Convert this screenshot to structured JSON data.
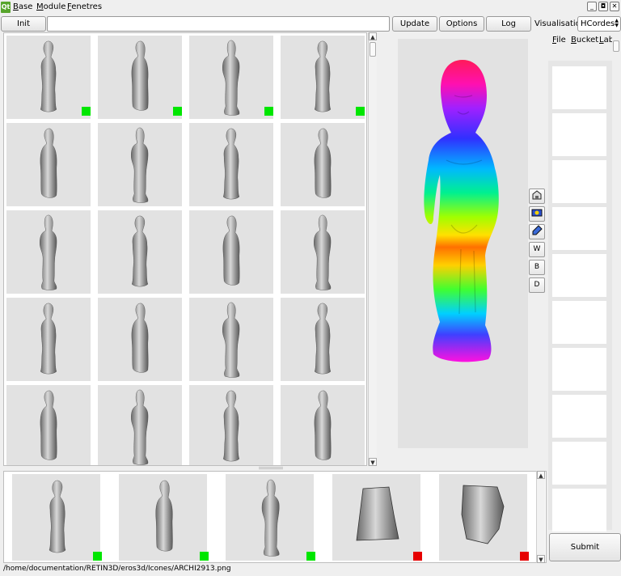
{
  "menubar": {
    "logo": "Qt",
    "items": [
      {
        "label": "Base",
        "accel": "B",
        "rest": "ase"
      },
      {
        "label": "Module",
        "accel": "M",
        "rest": "odule"
      },
      {
        "label": "Fenetres",
        "accel": "F",
        "rest": "enetres"
      }
    ],
    "window_buttons": [
      "_",
      "◘",
      "✕"
    ]
  },
  "toolbar": {
    "init_label": "Init",
    "path_value": "",
    "update_label": "Update",
    "options_label": "Options",
    "log_label": "Log",
    "visualisation_label": "Visualisation:",
    "visualisation_value": "HCordes"
  },
  "side_menu": [
    {
      "label": "File",
      "accel": "F",
      "rest": "ile"
    },
    {
      "label": "Bucket",
      "accel": "B",
      "rest": "ucket"
    },
    {
      "label": "Label",
      "accel": "L",
      "rest": "abel"
    }
  ],
  "viewer_tools": [
    {
      "name": "home-view-icon",
      "glyph": ""
    },
    {
      "name": "screenshot-icon",
      "glyph": ""
    },
    {
      "name": "brush-icon",
      "glyph": ""
    },
    {
      "name": "w-button",
      "glyph": "W"
    },
    {
      "name": "b-button",
      "glyph": "B"
    },
    {
      "name": "d-button",
      "glyph": "D"
    }
  ],
  "grid": {
    "rows": 5,
    "cols": 4,
    "flags": [
      "green",
      "green",
      "green",
      "green"
    ]
  },
  "bottom_flags": [
    "green",
    "green",
    "green",
    "red",
    "red"
  ],
  "label_slots": 10,
  "submit_label": "Submit",
  "status": "/home/documentation/RETIN3D/eros3d/Icones/ARCHI2913.png",
  "colors": {
    "green_flag": "#00e600",
    "red_flag": "#e60000",
    "thumb_bg": "#e2e2e2"
  }
}
